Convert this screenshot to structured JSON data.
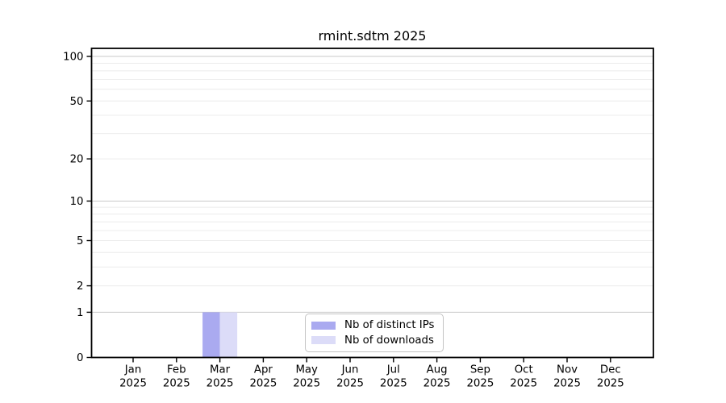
{
  "chart_data": {
    "type": "bar",
    "title": "rmint.sdtm 2025",
    "year": "2025",
    "categories": [
      "Jan 2025",
      "Feb 2025",
      "Mar 2025",
      "Apr 2025",
      "May 2025",
      "Jun 2025",
      "Jul 2025",
      "Aug 2025",
      "Sep 2025",
      "Oct 2025",
      "Nov 2025",
      "Dec 2025"
    ],
    "series": [
      {
        "name": "Nb of distinct IPs",
        "color": "#aaaaf0",
        "values": [
          0,
          0,
          1,
          0,
          0,
          0,
          0,
          0,
          0,
          0,
          0,
          0
        ]
      },
      {
        "name": "Nb of downloads",
        "color": "#dcdcf8",
        "values": [
          0,
          0,
          1,
          0,
          0,
          0,
          0,
          0,
          0,
          0,
          0,
          0
        ]
      }
    ],
    "xlabel": "",
    "ylabel": "",
    "yscale": "log1p",
    "ylim": [
      0,
      113
    ],
    "yticks": [
      0,
      1,
      2,
      5,
      10,
      20,
      50,
      100
    ],
    "ytick_labels": [
      "0",
      "1",
      "2",
      "5",
      "10",
      "20",
      "50",
      "100"
    ],
    "major_gridlines": [
      1,
      10,
      100
    ],
    "minor_gridlines": [
      2,
      3,
      4,
      5,
      6,
      7,
      8,
      9,
      20,
      30,
      40,
      50,
      60,
      70,
      80,
      90
    ],
    "grid": "horizontal",
    "legend_position": "inside-bottom-center"
  },
  "colors": {
    "background": "#ffffff",
    "axis": "#000000",
    "text": "#000000",
    "major_grid": "#c8c8c8",
    "minor_grid": "#ececec",
    "legend_border": "#c4c4c4"
  }
}
